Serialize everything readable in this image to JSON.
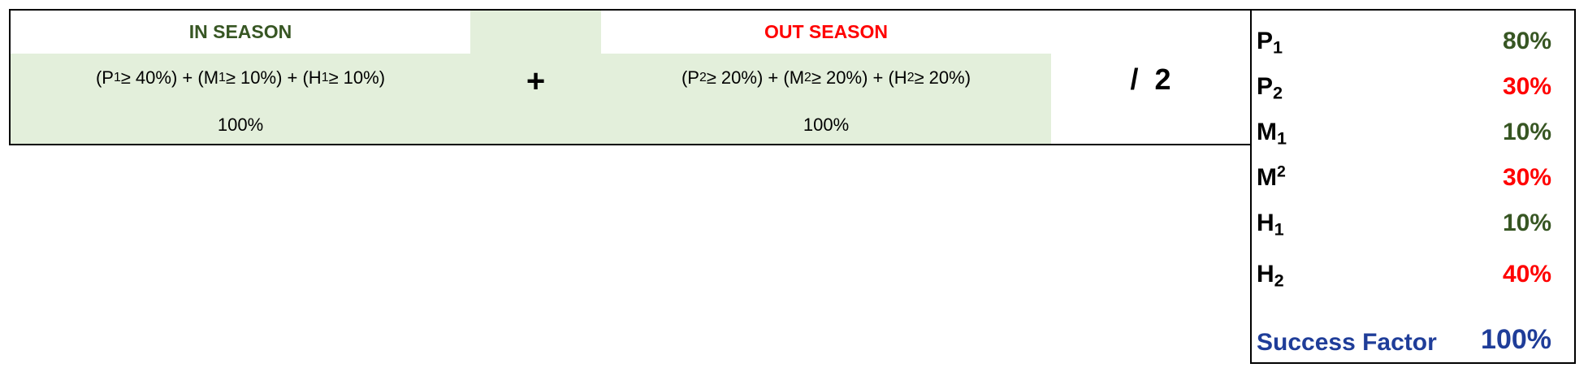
{
  "in_season": {
    "header": "IN SEASON",
    "header_color": "#375623",
    "formula": {
      "t1_open": "(P",
      "t1_sub": "1",
      "t1_close": " ≥ 40%) + (M",
      "t2_sub": "1",
      "t2_close": " ≥ 10%) + (H",
      "t3_sub": "1",
      "t3_close": " ≥ 10%)"
    },
    "total": "100%"
  },
  "plus_sign": "+",
  "out_season": {
    "header": "OUT SEASON",
    "header_color": "#ff0000",
    "formula": {
      "t1_open": "(P",
      "t1_sub": "2",
      "t1_close": " ≥ 20%) + (M",
      "t2_sub": "2",
      "t2_close": " ≥ 20%) + (H",
      "t3_sub": "2",
      "t3_close": " ≥ 20%)"
    },
    "total": "100%"
  },
  "divide": "/  2",
  "colors": {
    "green_fill": "#e3efdb",
    "in_green": "#375623",
    "out_red": "#ff0000",
    "blue": "#1f3d99"
  },
  "variables": [
    {
      "base": "P",
      "index": "1",
      "index_type": "sub",
      "value": "80%",
      "color": "#375623"
    },
    {
      "base": "P",
      "index": "2",
      "index_type": "sub",
      "value": "30%",
      "color": "#ff0000"
    },
    {
      "base": "M",
      "index": "1",
      "index_type": "sub",
      "value": "10%",
      "color": "#375623"
    },
    {
      "base": "M",
      "index": "2",
      "index_type": "sup",
      "value": "30%",
      "color": "#ff0000"
    },
    {
      "base": "H",
      "index": "1",
      "index_type": "sub",
      "value": "10%",
      "color": "#375623"
    },
    {
      "base": "H",
      "index": "2",
      "index_type": "sub",
      "value": "40%",
      "color": "#ff0000"
    }
  ],
  "success_factor": {
    "label": "Success Factor",
    "value": "100%"
  }
}
